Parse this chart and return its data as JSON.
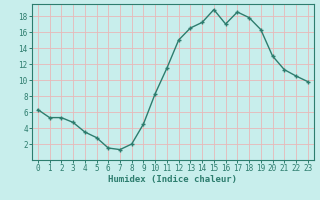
{
  "x": [
    0,
    1,
    2,
    3,
    4,
    5,
    6,
    7,
    8,
    9,
    10,
    11,
    12,
    13,
    14,
    15,
    16,
    17,
    18,
    19,
    20,
    21,
    22,
    23
  ],
  "y": [
    6.3,
    5.3,
    5.3,
    4.7,
    3.5,
    2.8,
    1.5,
    1.3,
    2.0,
    4.5,
    8.3,
    11.5,
    15.0,
    16.5,
    17.2,
    18.8,
    17.0,
    18.5,
    17.8,
    16.3,
    13.0,
    11.3,
    10.5,
    9.8
  ],
  "line_color": "#2d7d6e",
  "marker": "+",
  "bg_color": "#c8eeec",
  "grid_color": "#e8b8b8",
  "axis_color": "#2d7d6e",
  "spine_color": "#2d7d6e",
  "xlabel": "Humidex (Indice chaleur)",
  "ylim": [
    0,
    19.5
  ],
  "xlim": [
    -0.5,
    23.5
  ],
  "yticks": [
    2,
    4,
    6,
    8,
    10,
    12,
    14,
    16,
    18
  ],
  "xticks": [
    0,
    1,
    2,
    3,
    4,
    5,
    6,
    7,
    8,
    9,
    10,
    11,
    12,
    13,
    14,
    15,
    16,
    17,
    18,
    19,
    20,
    21,
    22,
    23
  ],
  "xlabel_fontsize": 6.5,
  "tick_fontsize": 5.5,
  "linewidth": 1.0,
  "markersize": 3.5,
  "markeredgewidth": 1.0
}
